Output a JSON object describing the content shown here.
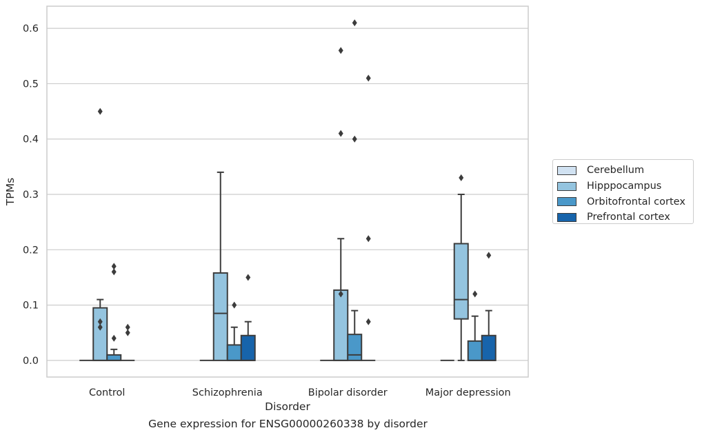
{
  "chart_data": {
    "type": "box",
    "title": "",
    "caption": "Gene expression for ENSG00000260338 by disorder",
    "xlabel": "Disorder",
    "ylabel": "TPMs",
    "ylim": [
      -0.03,
      0.64
    ],
    "yticks": [
      0.0,
      0.1,
      0.2,
      0.3,
      0.4,
      0.5,
      0.6
    ],
    "ytick_labels": [
      "0.0",
      "0.1",
      "0.2",
      "0.3",
      "0.4",
      "0.5",
      "0.6"
    ],
    "grid": "horizontal",
    "legend_position": "right",
    "categories": [
      "Control",
      "Schizophrenia",
      "Bipolar disorder",
      "Major depression"
    ],
    "hue": [
      {
        "name": "Cerebellum",
        "color": "#d1e2f2"
      },
      {
        "name": "Hipppocampus",
        "color": "#94c4df"
      },
      {
        "name": "Orbitofrontal cortex",
        "color": "#4a98c9"
      },
      {
        "name": "Prefrontal cortex",
        "color": "#1764ab"
      }
    ],
    "boxes": [
      [
        {
          "q1": 0,
          "median": 0,
          "q3": 0,
          "whislo": 0,
          "whishi": 0,
          "fliers": []
        },
        {
          "q1": 0,
          "median": 0,
          "q3": 0.095,
          "whislo": 0,
          "whishi": 0.11,
          "fliers": [
            0.06,
            0.07,
            0.45
          ]
        },
        {
          "q1": 0,
          "median": 0,
          "q3": 0.01,
          "whislo": 0,
          "whishi": 0.02,
          "fliers": [
            0.04,
            0.16,
            0.17
          ]
        },
        {
          "q1": 0,
          "median": 0,
          "q3": 0,
          "whislo": 0,
          "whishi": 0,
          "fliers": [
            0.05,
            0.06
          ]
        }
      ],
      [
        {
          "q1": 0,
          "median": 0,
          "q3": 0,
          "whislo": 0,
          "whishi": 0,
          "fliers": []
        },
        {
          "q1": 0,
          "median": 0.085,
          "q3": 0.158,
          "whislo": 0,
          "whishi": 0.34,
          "fliers": []
        },
        {
          "q1": 0,
          "median": 0,
          "q3": 0.028,
          "whislo": 0,
          "whishi": 0.06,
          "fliers": [
            0.1
          ]
        },
        {
          "q1": 0,
          "median": 0,
          "q3": 0.045,
          "whislo": 0,
          "whishi": 0.07,
          "fliers": [
            0.15
          ]
        }
      ],
      [
        {
          "q1": 0,
          "median": 0,
          "q3": 0,
          "whislo": 0,
          "whishi": 0,
          "fliers": []
        },
        {
          "q1": 0,
          "median": 0,
          "q3": 0.127,
          "whislo": 0,
          "whishi": 0.22,
          "fliers": [
            0.12,
            0.41,
            0.56
          ]
        },
        {
          "q1": 0,
          "median": 0.01,
          "q3": 0.047,
          "whislo": 0,
          "whishi": 0.09,
          "fliers": [
            0.4,
            0.61
          ]
        },
        {
          "q1": 0,
          "median": 0,
          "q3": 0,
          "whislo": 0,
          "whishi": 0,
          "fliers": [
            0.07,
            0.22,
            0.51
          ]
        }
      ],
      [
        {
          "q1": 0,
          "median": 0,
          "q3": 0,
          "whislo": 0,
          "whishi": 0,
          "fliers": []
        },
        {
          "q1": 0.075,
          "median": 0.11,
          "q3": 0.211,
          "whislo": 0,
          "whishi": 0.3,
          "fliers": [
            0.33
          ]
        },
        {
          "q1": 0,
          "median": 0,
          "q3": 0.035,
          "whislo": 0,
          "whishi": 0.08,
          "fliers": [
            0.12
          ]
        },
        {
          "q1": 0,
          "median": 0,
          "q3": 0.045,
          "whislo": 0,
          "whishi": 0.09,
          "fliers": [
            0.19
          ]
        }
      ]
    ]
  }
}
